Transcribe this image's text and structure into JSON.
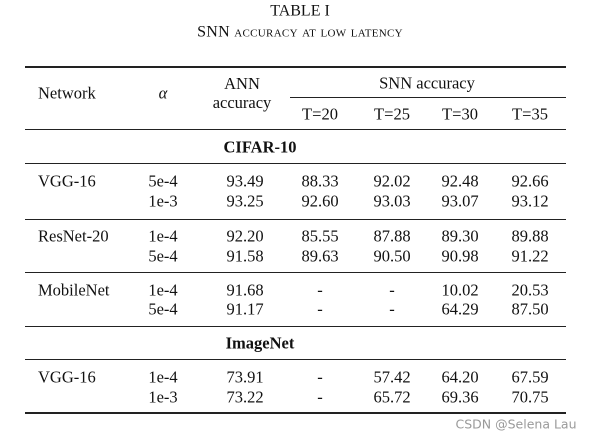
{
  "title": "TABLE I",
  "subtitle": "SNN accuracy at low latency",
  "table": {
    "header": {
      "network": "Network",
      "alpha": "α",
      "ann": "ANN accuracy",
      "snn": "SNN accuracy",
      "timesteps": [
        "T=20",
        "T=25",
        "T=30",
        "T=35"
      ]
    },
    "sections": [
      {
        "name": "CIFAR-10",
        "groups": [
          {
            "network": "VGG-16",
            "rows": [
              [
                "5e-4",
                "93.49",
                "88.33",
                "92.02",
                "92.48",
                "92.66"
              ],
              [
                "1e-3",
                "93.25",
                "92.60",
                "93.03",
                "93.07",
                "93.12"
              ]
            ]
          },
          {
            "network": "ResNet-20",
            "rows": [
              [
                "1e-4",
                "92.20",
                "85.55",
                "87.88",
                "89.30",
                "89.88"
              ],
              [
                "5e-4",
                "91.58",
                "89.63",
                "90.50",
                "90.98",
                "91.22"
              ]
            ]
          },
          {
            "network": "MobileNet",
            "rows": [
              [
                "1e-4",
                "91.68",
                "-",
                "-",
                "10.02",
                "20.53"
              ],
              [
                "5e-4",
                "91.17",
                "-",
                "-",
                "64.29",
                "87.50"
              ]
            ]
          }
        ]
      },
      {
        "name": "ImageNet",
        "groups": [
          {
            "network": "VGG-16",
            "rows": [
              [
                "1e-4",
                "73.91",
                "-",
                "57.42",
                "64.20",
                "67.59"
              ],
              [
                "1e-3",
                "73.22",
                "-",
                "65.72",
                "69.36",
                "70.75"
              ]
            ]
          }
        ]
      }
    ]
  },
  "watermark": "CSDN @Selena Lau"
}
